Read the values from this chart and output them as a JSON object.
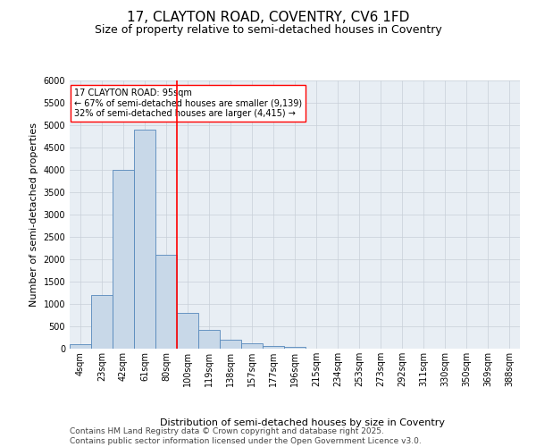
{
  "title_line1": "17, CLAYTON ROAD, COVENTRY, CV6 1FD",
  "title_line2": "Size of property relative to semi-detached houses in Coventry",
  "xlabel": "Distribution of semi-detached houses by size in Coventry",
  "ylabel": "Number of semi-detached properties",
  "categories": [
    "4sqm",
    "23sqm",
    "42sqm",
    "61sqm",
    "80sqm",
    "100sqm",
    "119sqm",
    "138sqm",
    "157sqm",
    "177sqm",
    "196sqm",
    "215sqm",
    "234sqm",
    "253sqm",
    "273sqm",
    "292sqm",
    "311sqm",
    "330sqm",
    "350sqm",
    "369sqm",
    "388sqm"
  ],
  "values": [
    100,
    1200,
    4000,
    4900,
    2100,
    800,
    430,
    210,
    120,
    70,
    50,
    0,
    0,
    0,
    0,
    0,
    0,
    0,
    0,
    0,
    0
  ],
  "bar_color": "#c8d8e8",
  "bar_edge_color": "#5588bb",
  "vline_color": "red",
  "annotation_text": "17 CLAYTON ROAD: 95sqm\n← 67% of semi-detached houses are smaller (9,139)\n32% of semi-detached houses are larger (4,415) →",
  "annotation_box_color": "white",
  "annotation_box_edge_color": "red",
  "ylim": [
    0,
    6000
  ],
  "yticks": [
    0,
    500,
    1000,
    1500,
    2000,
    2500,
    3000,
    3500,
    4000,
    4500,
    5000,
    5500,
    6000
  ],
  "grid_color": "#c8cfd8",
  "background_color": "#e8eef4",
  "footer_text": "Contains HM Land Registry data © Crown copyright and database right 2025.\nContains public sector information licensed under the Open Government Licence v3.0.",
  "title_fontsize": 11,
  "subtitle_fontsize": 9,
  "label_fontsize": 8,
  "tick_fontsize": 7,
  "footer_fontsize": 6.5,
  "annotation_fontsize": 7
}
